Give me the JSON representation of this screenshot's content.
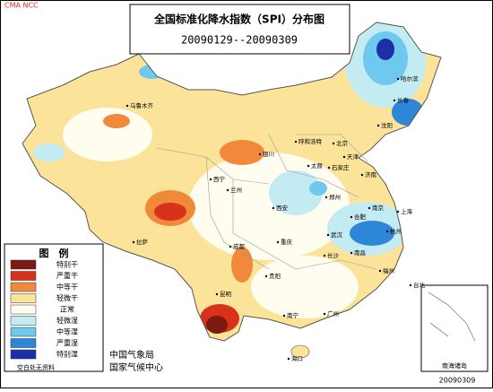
{
  "watermark": "CMA NCC",
  "header": {
    "title": "全国标准化降水指数（SPI）分布图",
    "period": "20090129--20090309"
  },
  "legend": {
    "title": "图　例",
    "items": [
      {
        "label": "特别干",
        "color": "#7a1a12"
      },
      {
        "label": "严重干",
        "color": "#d8321a"
      },
      {
        "label": "中等干",
        "color": "#f08a3a"
      },
      {
        "label": "轻微干",
        "color": "#fbe39a"
      },
      {
        "label": "正常",
        "color": "#fffdf0"
      },
      {
        "label": "轻微湿",
        "color": "#c3ecf2"
      },
      {
        "label": "中等湿",
        "color": "#6fc9ee"
      },
      {
        "label": "严重湿",
        "color": "#2e86d6"
      },
      {
        "label": "特别湿",
        "color": "#1a2fa8"
      }
    ],
    "note": "空白处无资料"
  },
  "cities": [
    "哈尔滨",
    "长春",
    "沈阳",
    "乌鲁木齐",
    "呼和浩特",
    "北京",
    "天津",
    "银川",
    "太原",
    "石家庄",
    "济南",
    "西宁",
    "兰州",
    "郑州",
    "西安",
    "拉萨",
    "成都",
    "合肥",
    "南京",
    "上海",
    "武汉",
    "重庆",
    "杭州",
    "长沙",
    "南昌",
    "贵阳",
    "福州",
    "昆明",
    "台北",
    "南宁",
    "广州",
    "海口"
  ],
  "publisher": {
    "agency": "中国气象局",
    "center": "国家气候中心"
  },
  "inset": "南海诸岛",
  "issue_date": "20090309"
}
